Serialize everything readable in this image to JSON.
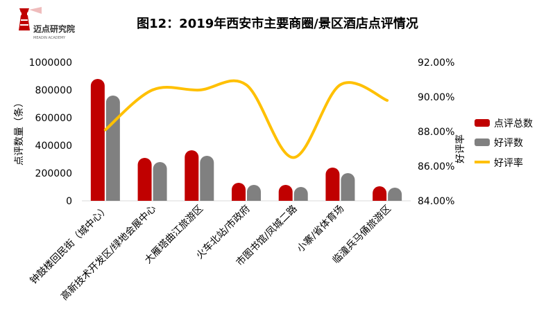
{
  "header": {
    "logo_text": "迈点研究院",
    "logo_subtext": "MEADIN ACADEMY",
    "title": "图12：2019年西安市主要商圈/景区酒店点评情况"
  },
  "chart_data": {
    "type": "bar",
    "title": "图12：2019年西安市主要商圈/景区酒店点评情况",
    "categories": [
      "钟鼓楼回民街（城中心）",
      "高新技术开发区/绿地会展中心",
      "大雁塔曲江旅游区",
      "火车北站/市政府",
      "市图书馆/凤城二路",
      "小寨/省体育场",
      "临潼兵马俑旅游区"
    ],
    "ylabel": "点评数量（条）",
    "y2label": "好评率",
    "ylim": [
      0,
      1000000
    ],
    "y2lim": [
      84,
      92
    ],
    "yticks": [
      "0",
      "200000",
      "400000",
      "600000",
      "800000",
      "1000000"
    ],
    "y2ticks": [
      "84.00%",
      "86.00%",
      "88.00%",
      "90.00%",
      "92.00%"
    ],
    "legend_position": "right",
    "grid": false,
    "series": [
      {
        "name": "点评总数",
        "type": "bar",
        "axis": "left",
        "color": "#c00000",
        "values": [
          880000,
          310000,
          365000,
          130000,
          115000,
          240000,
          105000
        ]
      },
      {
        "name": "好评数",
        "type": "bar",
        "axis": "left",
        "color": "#808080",
        "values": [
          760000,
          280000,
          325000,
          115000,
          100000,
          200000,
          95000
        ]
      },
      {
        "name": "好评率",
        "type": "line",
        "axis": "right",
        "color": "#ffc000",
        "values": [
          88.1,
          90.4,
          90.4,
          90.7,
          86.5,
          90.7,
          89.8
        ]
      }
    ]
  }
}
